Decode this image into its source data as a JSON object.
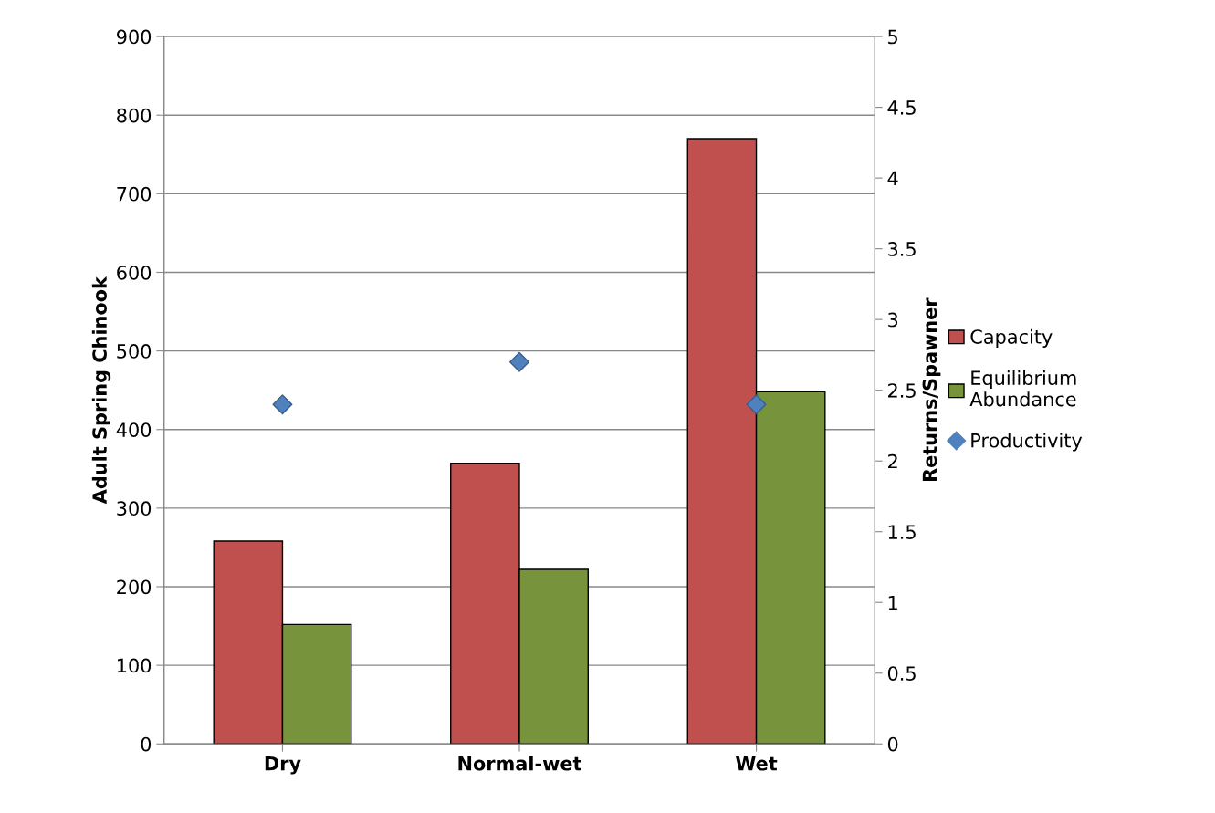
{
  "chart_data": {
    "type": "bar",
    "ylabel": "Adult Spring Chinook",
    "y2label": "Returns/Spawner",
    "categories": [
      "Dry",
      "Normal-wet",
      "Wet"
    ],
    "series": [
      {
        "name": "Capacity",
        "color": "#c0504d",
        "values": [
          258,
          357,
          770
        ]
      },
      {
        "name": "Equilibrium\nAbundance",
        "color": "#77933c",
        "values": [
          152,
          222,
          448
        ]
      },
      {
        "name": "Productivity",
        "color": "#4f81bd",
        "type": "scatter",
        "axis": "y2",
        "marker": "diamond",
        "values": [
          2.4,
          2.7,
          2.4
        ]
      }
    ],
    "ylim": [
      0,
      900
    ],
    "yticks": [
      0,
      100,
      200,
      300,
      400,
      500,
      600,
      700,
      800,
      900
    ],
    "y2lim": [
      0,
      5
    ],
    "y2ticks": [
      0,
      0.5,
      1,
      1.5,
      2,
      2.5,
      3,
      3.5,
      4,
      4.5,
      5
    ],
    "grid": "y",
    "legend": "right"
  }
}
